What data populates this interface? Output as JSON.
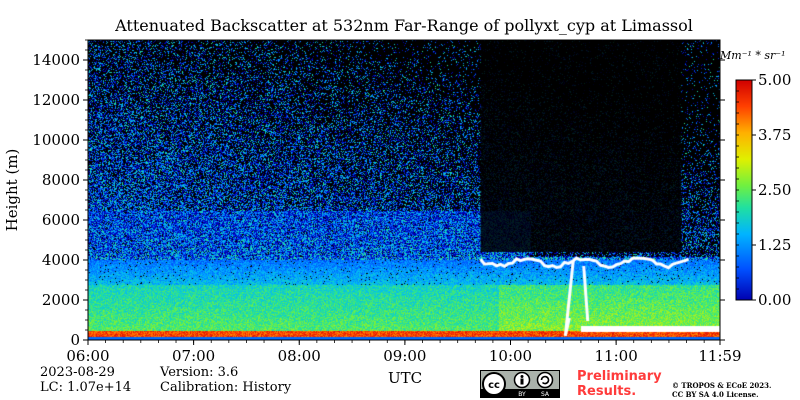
{
  "chart_data": {
    "type": "heatmap",
    "title": "Attenuated Backscatter at 532nm Far-Range of pollyxt_cyp at Limassol",
    "xlabel": "UTC",
    "ylabel": "Height (m)",
    "x_range": [
      "06:00",
      "11:59"
    ],
    "x_ticks": [
      "06:00",
      "07:00",
      "08:00",
      "09:00",
      "10:00",
      "11:00",
      "11:59"
    ],
    "ylim": [
      0,
      15000
    ],
    "y_ticks": [
      0,
      2000,
      4000,
      6000,
      8000,
      10000,
      12000,
      14000
    ],
    "colorbar": {
      "unit_label": "Mm⁻¹ * sr⁻¹",
      "range": [
        0.0,
        5.0
      ],
      "ticks": [
        "0.00",
        "1.25",
        "2.50",
        "3.75",
        "5.00"
      ],
      "colormap": "jet"
    },
    "layers": [
      {
        "from": "06:00",
        "to": "11:59",
        "base_m": 0,
        "top_m": 500,
        "value": 4.5
      },
      {
        "from": "06:00",
        "to": "09:40",
        "base_m": 500,
        "top_m": 3000,
        "value": 2.3
      },
      {
        "from": "09:40",
        "to": "11:59",
        "base_m": 500,
        "top_m": 2800,
        "value": 2.6
      },
      {
        "from": "06:00",
        "to": "11:59",
        "base_m": 3000,
        "top_m": 5000,
        "value": 1.0
      }
    ],
    "clouds": [
      {
        "from": "10:00",
        "to": "11:20",
        "base_m": 3500,
        "top_m": 4400
      },
      {
        "from": "10:30",
        "to": "10:45",
        "base_m": 700,
        "top_m": 4000
      }
    ]
  },
  "footer": {
    "date": "2023-08-29",
    "lc": "LC: 1.07e+14",
    "version": "Version: 3.6",
    "calibration": "Calibration: History",
    "preliminary": "Preliminary\nResults.",
    "copyright": "© TROPOS & ECoE 2023.",
    "license": "CC BY SA 4.0 License.",
    "cc_badge_text": [
      "BY",
      "SA"
    ]
  }
}
